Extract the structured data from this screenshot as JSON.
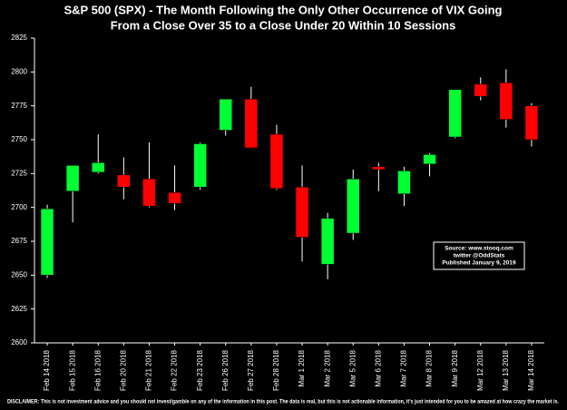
{
  "chart_data": {
    "type": "candlestick",
    "title": [
      "S&P 500 (SPX) - The Month Following the Only Other Occurrence of VIX Going",
      "From a Close Over 35 to a Close Under 20 Within 10 Sessions"
    ],
    "categories": [
      "Feb 14 2018",
      "Feb 15 2018",
      "Feb 16 2018",
      "Feb 20 2018",
      "Feb 21 2018",
      "Feb 22 2018",
      "Feb 23 2018",
      "Feb 26 2018",
      "Feb 27 2018",
      "Feb 28 2018",
      "Mar 1 2018",
      "Mar 2 2018",
      "Mar 5 2018",
      "Mar 6 2018",
      "Mar 7 2018",
      "Mar 8 2018",
      "Mar 9 2018",
      "Mar 12 2018",
      "Mar 13 2018",
      "Mar 14 2018"
    ],
    "open": [
      2650,
      2712,
      2726,
      2724,
      2721,
      2711,
      2715,
      2757,
      2780,
      2754,
      2715,
      2658,
      2681,
      2730,
      2710,
      2732,
      2752,
      2791,
      2792,
      2775
    ],
    "high": [
      2702,
      2731,
      2754,
      2737,
      2748,
      2731,
      2748,
      2780,
      2789,
      2761,
      2731,
      2696,
      2728,
      2733,
      2730,
      2740,
      2787,
      2796,
      2802,
      2777
    ],
    "low": [
      2648,
      2689,
      2725,
      2706,
      2700,
      2698,
      2713,
      2753,
      2744,
      2713,
      2660,
      2647,
      2676,
      2712,
      2701,
      2723,
      2751,
      2779,
      2759,
      2745
    ],
    "close": [
      2699,
      2731,
      2733,
      2715,
      2701,
      2703,
      2747,
      2780,
      2744,
      2714,
      2678,
      2692,
      2721,
      2728,
      2727,
      2739,
      2787,
      2782,
      2765,
      2750
    ],
    "up_color": "#00ff33",
    "down_color": "#ff0000",
    "ylim": [
      2600,
      2825
    ],
    "yticks": [
      2600,
      2625,
      2650,
      2675,
      2700,
      2725,
      2750,
      2775,
      2800,
      2825
    ],
    "grid": false,
    "annotation": [
      "Source: www.stooq.com",
      "twitter @OddStats",
      "Published January 9, 2019"
    ],
    "disclaimer": "DISCLAIMER: This is not investment advice and you should not invest/gamble on any of the information in this post.  The data is real, but this is not actionable information, it's just intended for you to be amazed at how crazy the market is."
  }
}
